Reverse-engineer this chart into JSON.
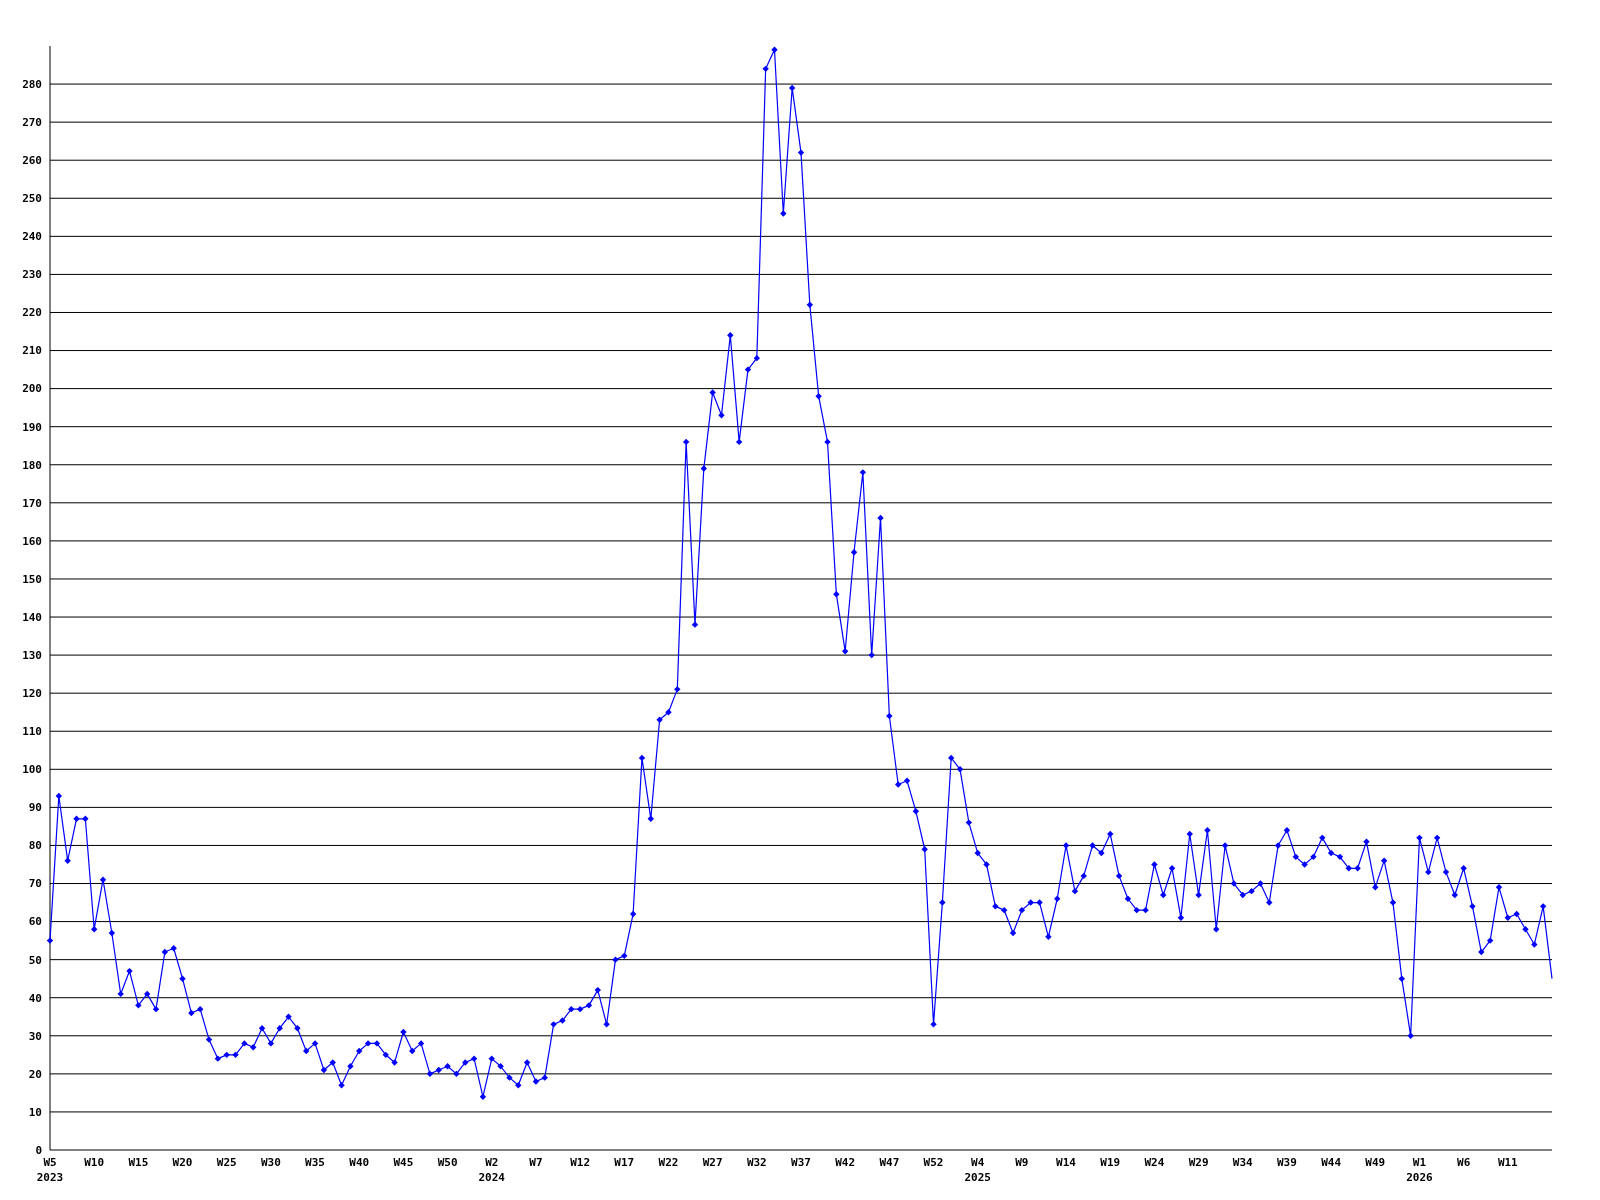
{
  "chart_data": {
    "type": "line",
    "categories": [
      "W5\n2023",
      null,
      null,
      null,
      null,
      "W10",
      null,
      null,
      null,
      null,
      "W15",
      null,
      null,
      null,
      null,
      "W20",
      null,
      null,
      null,
      null,
      "W25",
      null,
      null,
      null,
      null,
      "W30",
      null,
      null,
      null,
      null,
      "W35",
      null,
      null,
      null,
      null,
      "W40",
      null,
      null,
      null,
      null,
      "W45",
      null,
      null,
      null,
      null,
      "W50",
      null,
      null,
      null,
      null,
      "W2\n2024",
      null,
      null,
      null,
      null,
      "W7",
      null,
      null,
      null,
      null,
      "W12",
      null,
      null,
      null,
      null,
      "W17",
      null,
      null,
      null,
      null,
      "W22",
      null,
      null,
      null,
      null,
      "W27",
      null,
      null,
      null,
      null,
      "W32",
      null,
      null,
      null,
      null,
      "W37",
      null,
      null,
      null,
      null,
      "W42",
      null,
      null,
      null,
      null,
      "W47",
      null,
      null,
      null,
      null,
      "W52",
      null,
      null,
      null,
      null,
      "W4\n2025",
      null,
      null,
      null,
      null,
      "W9",
      null,
      null,
      null,
      null,
      "W14",
      null,
      null,
      null,
      null,
      "W19",
      null,
      null,
      null,
      null,
      "W24",
      null,
      null,
      null,
      null,
      "W29",
      null,
      null,
      null,
      null,
      "W34",
      null,
      null,
      null,
      null,
      "W39",
      null,
      null,
      null,
      null,
      "W44",
      null,
      null,
      null,
      null,
      "W49",
      null,
      null,
      null,
      null,
      "W1\n2026",
      null,
      null,
      null,
      null,
      "W6",
      null,
      null,
      null,
      null,
      "W11",
      null,
      null,
      null,
      null,
      null
    ],
    "values": [
      55,
      93,
      76,
      87,
      87,
      58,
      71,
      57,
      41,
      47,
      38,
      41,
      37,
      52,
      53,
      45,
      36,
      37,
      29,
      24,
      25,
      25,
      28,
      27,
      32,
      28,
      32,
      35,
      32,
      26,
      28,
      21,
      23,
      17,
      22,
      26,
      28,
      28,
      25,
      23,
      31,
      26,
      28,
      20,
      21,
      22,
      20,
      23,
      24,
      14,
      24,
      22,
      19,
      17,
      23,
      18,
      19,
      33,
      34,
      37,
      37,
      38,
      42,
      33,
      50,
      51,
      62,
      103,
      87,
      113,
      115,
      121,
      186,
      138,
      179,
      199,
      193,
      214,
      186,
      205,
      208,
      284,
      289,
      246,
      279,
      262,
      222,
      198,
      186,
      146,
      131,
      157,
      178,
      130,
      166,
      114,
      96,
      97,
      89,
      79,
      33,
      65,
      103,
      100,
      86,
      78,
      75,
      64,
      63,
      57,
      63,
      65,
      65,
      56,
      66,
      80,
      68,
      72,
      80,
      78,
      83,
      72,
      66,
      63,
      63,
      75,
      67,
      74,
      61,
      83,
      67,
      84,
      58,
      80,
      70,
      67,
      68,
      70,
      65,
      80,
      84,
      77,
      75,
      77,
      82,
      78,
      77,
      74,
      74,
      81,
      69,
      76,
      65,
      45,
      30,
      82,
      73,
      82,
      73,
      67,
      74,
      64,
      52,
      55,
      69,
      61,
      62,
      58,
      54,
      64,
      45
    ],
    "color": "#0000ff",
    "ylim": [
      0,
      290
    ],
    "yticks": [
      0,
      10,
      20,
      30,
      40,
      50,
      60,
      70,
      80,
      90,
      100,
      110,
      120,
      130,
      140,
      150,
      160,
      170,
      180,
      190,
      200,
      210,
      220,
      230,
      240,
      250,
      260,
      270,
      280
    ],
    "grid": "y",
    "marker": "diamond"
  }
}
